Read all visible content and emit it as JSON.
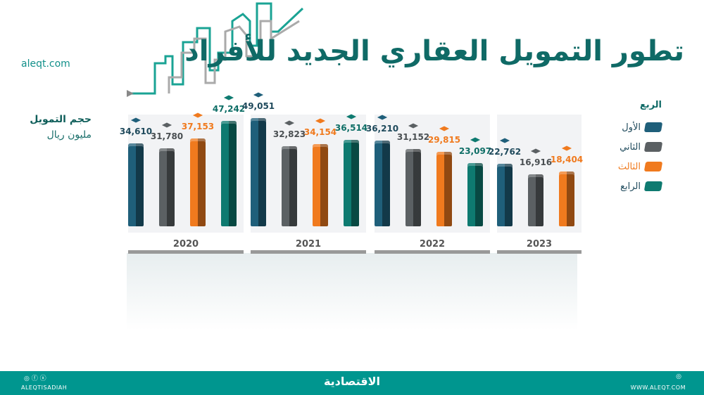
{
  "title": "تطور التمويل العقاري الجديد للأفراد",
  "site": "aleqt.com",
  "chart_data": {
    "type": "bar",
    "unit_label": [
      "حجم التمويل",
      "مليون ريال"
    ],
    "legend_title": "الربع",
    "categories": [
      "2020",
      "2021",
      "2022",
      "2023"
    ],
    "series": [
      {
        "name": "الأول",
        "color": "#1f5f7a",
        "values": [
          34610,
          49051,
          36210,
          22762
        ]
      },
      {
        "name": "الثاني",
        "color": "#5b6063",
        "values": [
          31780,
          32823,
          31152,
          16916
        ]
      },
      {
        "name": "الثالث",
        "color": "#f07a1e",
        "values": [
          37153,
          34154,
          29815,
          18404
        ]
      },
      {
        "name": "الرابع",
        "color": "#0e7a70",
        "values": [
          47242,
          36514,
          23097,
          null
        ]
      }
    ],
    "labels": [
      [
        "34,610",
        "31,780",
        "37,153",
        "47,242"
      ],
      [
        "49,051",
        "32,823",
        "34,154",
        "36,514"
      ],
      [
        "36,210",
        "31,152",
        "29,815",
        "23,097"
      ],
      [
        "22,762",
        "16,916",
        "18,404",
        null
      ]
    ],
    "label_colors": [
      "#1f4a5c",
      "#4a4f52",
      "#f07a1e",
      "#0e6e66"
    ]
  },
  "footer": {
    "left": "ALEQTISADIAH",
    "center": "الاقتصادية",
    "right": "WWW.ALEQT.COM"
  }
}
